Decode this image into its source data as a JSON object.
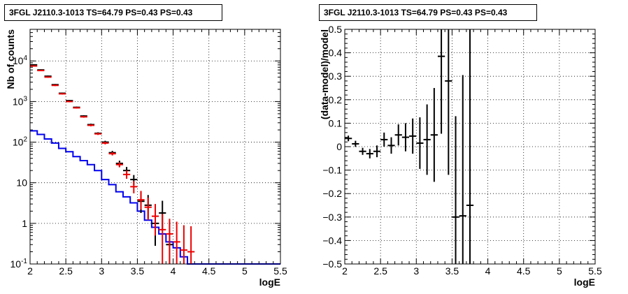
{
  "chart_data": [
    {
      "type": "line",
      "title": "3FGL J2110.3-1013 TS=64.79 PS=0.43 PS=0.43",
      "xlabel": "logE",
      "ylabel": "Nb of counts",
      "xlim": [
        2,
        5.5
      ],
      "ylim": [
        0.1,
        60000
      ],
      "yscale": "log",
      "grid": true,
      "xticks": [
        "2",
        "2.5",
        "3",
        "3.5",
        "4",
        "4.5",
        "5",
        "5.5"
      ],
      "yticks": [
        "10^{-1}",
        "1",
        "10",
        "10^{2}",
        "10^{3}",
        "10^{4}"
      ],
      "bin_halfwidth": 0.05,
      "series": [
        {
          "style": "step",
          "color": "#0000ee",
          "x": [
            2.05,
            2.15,
            2.25,
            2.35,
            2.45,
            2.55,
            2.65,
            2.75,
            2.85,
            2.95,
            3.05,
            3.15,
            3.25,
            3.35,
            3.45,
            3.55,
            3.65,
            3.75,
            3.85,
            3.95,
            4.05,
            4.15,
            4.25,
            4.35,
            4.45,
            4.55,
            4.65,
            4.75,
            4.85,
            4.95,
            5.05,
            5.15,
            5.25,
            5.35,
            5.45
          ],
          "y": [
            190,
            155,
            120,
            95,
            70,
            58,
            44,
            35,
            28,
            20,
            12,
            9,
            6,
            4.5,
            3.2,
            2.0,
            1.2,
            0.8,
            0.55,
            0.35,
            0.25,
            0.15,
            0.1,
            0.1,
            0.1,
            0.1,
            0.1,
            0.1,
            0.1,
            0.1,
            0.1,
            0.1,
            0.1,
            0.1,
            0.1
          ]
        },
        {
          "style": "errorbar",
          "color": "#000000",
          "x": [
            2.05,
            2.15,
            2.25,
            2.35,
            2.45,
            2.55,
            2.65,
            2.75,
            2.85,
            2.95,
            3.05,
            3.15,
            3.25,
            3.35,
            3.45,
            3.55,
            3.65,
            3.75,
            3.85,
            3.95
          ],
          "y": [
            8000,
            6000,
            4200,
            2600,
            1600,
            1050,
            720,
            440,
            270,
            165,
            100,
            55,
            30,
            20,
            12,
            3.5,
            2.8,
            1.0,
            1.8,
            0.3
          ],
          "ylo": [
            7800,
            5800,
            4050,
            2500,
            1540,
            1010,
            690,
            420,
            255,
            155,
            92,
            49,
            25,
            15.5,
            8.8,
            1.8,
            1.3,
            0.28,
            0.7,
            0.1
          ],
          "yhi": [
            8200,
            6200,
            4350,
            2700,
            1660,
            1090,
            750,
            460,
            285,
            175,
            108,
            61,
            35,
            24.5,
            15.5,
            6,
            5,
            2.3,
            3.6,
            1.1
          ]
        },
        {
          "style": "errorbar",
          "color": "#ee0000",
          "x": [
            2.05,
            2.15,
            2.25,
            2.35,
            2.45,
            2.55,
            2.65,
            2.75,
            2.85,
            2.95,
            3.05,
            3.15,
            3.25,
            3.35,
            3.45,
            3.55,
            3.65,
            3.75,
            3.85,
            3.95,
            4.05,
            4.15,
            4.25
          ],
          "y": [
            7500,
            5800,
            4000,
            2500,
            1550,
            1000,
            700,
            420,
            260,
            160,
            95,
            52,
            28,
            16,
            8,
            3.8,
            2.5,
            1.5,
            0.7,
            0.55,
            0.35,
            0.22,
            0.2
          ],
          "ylo": [
            7300,
            5600,
            3850,
            2400,
            1490,
            960,
            670,
            400,
            245,
            150,
            88,
            47,
            24,
            12.5,
            5.5,
            2.2,
            1.2,
            0.5,
            0.1,
            0.1,
            0.1,
            0.1,
            0.1
          ],
          "yhi": [
            7700,
            6000,
            4150,
            2600,
            1610,
            1040,
            730,
            440,
            275,
            170,
            102,
            57,
            32,
            20,
            11,
            6.3,
            4.3,
            3.0,
            1.7,
            1.3,
            1.1,
            0.9,
            0.85
          ]
        }
      ]
    },
    {
      "type": "scatter",
      "title": "3FGL J2110.3-1013 TS=64.79 PS=0.43 PS=0.43",
      "xlabel": "logE",
      "ylabel": "(data-model)/model",
      "xlim": [
        2,
        5.5
      ],
      "ylim": [
        -0.5,
        0.5
      ],
      "grid": true,
      "xticks": [
        "2",
        "2.5",
        "3",
        "3.5",
        "4",
        "4.5",
        "5",
        "5.5"
      ],
      "yticks": [
        "−0.5",
        "−0.4",
        "−0.3",
        "−0.2",
        "−0.1",
        "0",
        "0.1",
        "0.2",
        "0.3",
        "0.4",
        "0.5"
      ],
      "bin_halfwidth": 0.05,
      "series": [
        {
          "style": "errorbar",
          "color": "#000000",
          "x": [
            2.05,
            2.15,
            2.25,
            2.35,
            2.45,
            2.55,
            2.65,
            2.75,
            2.85,
            2.95,
            3.05,
            3.15,
            3.25,
            3.35,
            3.45,
            3.55,
            3.65,
            3.75
          ],
          "y": [
            0.035,
            0.012,
            -0.02,
            -0.03,
            -0.02,
            0.03,
            0.005,
            0.05,
            0.04,
            0.045,
            0.015,
            0.03,
            0.05,
            0.385,
            0.28,
            -0.3,
            -0.295,
            -0.25
          ],
          "err": [
            0.012,
            0.013,
            0.015,
            0.02,
            0.025,
            0.03,
            0.035,
            0.045,
            0.06,
            0.075,
            0.11,
            0.15,
            0.2,
            0.33,
            0.4,
            0.43,
            0.6,
            0.75
          ]
        }
      ]
    }
  ]
}
